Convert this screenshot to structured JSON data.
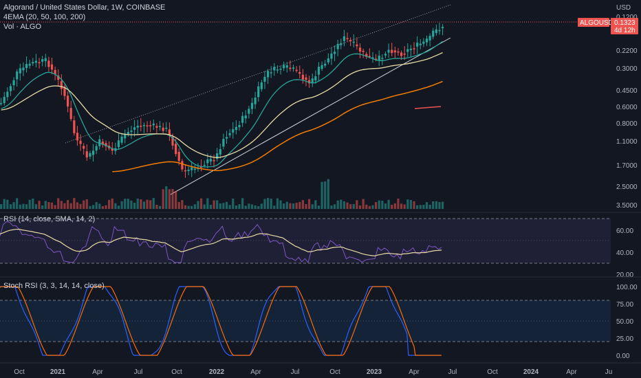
{
  "header": {
    "title": "Algorand / United States Dollar, 1W, COINBASE",
    "indicator": "4EMA (20, 50, 100, 200)",
    "volume": "Vol · ALGO"
  },
  "price_axis": {
    "currency": "USD",
    "ticks": [
      "0.1200",
      "0.2200",
      "0.3000",
      "0.4500",
      "0.6000",
      "0.8000",
      "1.1000",
      "1.7000",
      "2.5000",
      "3.5000"
    ],
    "ticker_tag": "ALGOUSD",
    "last_price": "0.1323",
    "countdown": "4d 12h"
  },
  "rsi_panel": {
    "label": "RSI (14, close, SMA, 14, 2)",
    "ticks": [
      "60.00",
      "40.00",
      "20.00"
    ]
  },
  "stoch_panel": {
    "label": "Stoch RSI (3, 3, 14, 14, close)",
    "ticks": [
      "100.00",
      "75.00",
      "50.00",
      "25.00",
      "0.00"
    ]
  },
  "time_axis": {
    "labels": [
      "Oct",
      "2021",
      "Apr",
      "Jul",
      "Oct",
      "2022",
      "Apr",
      "Jul",
      "Oct",
      "2023",
      "Apr",
      "Jul",
      "Oct",
      "2024",
      "Apr",
      "Ju"
    ]
  },
  "colors": {
    "background": "#131722",
    "up": "#26a69a",
    "down": "#ef5350",
    "ema20": "#26a69a",
    "ema50": "#e8dca6",
    "ema100": "#f57c00",
    "ema200": "#ef5350",
    "rsi": "#7e57c2",
    "stoch_k": "#2962ff",
    "stoch_d": "#ff6d00"
  }
}
